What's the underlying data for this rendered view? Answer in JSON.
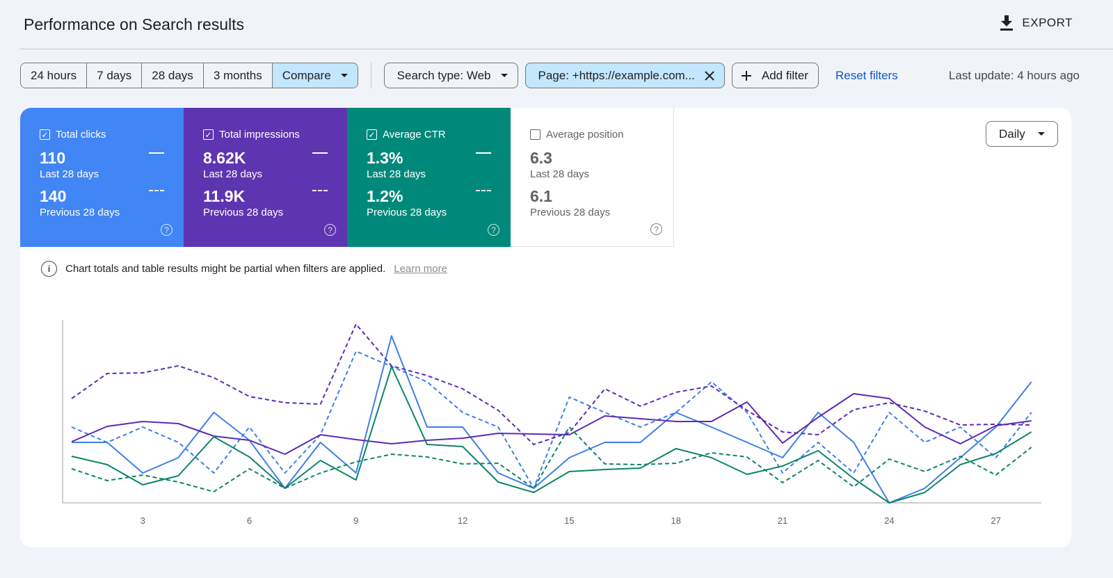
{
  "header": {
    "title": "Performance on Search results",
    "export_label": "EXPORT",
    "export_icon": "download-icon"
  },
  "toolbar": {
    "ranges": [
      "24 hours",
      "7 days",
      "28 days",
      "3 months"
    ],
    "compare_label": "Compare",
    "search_type": "Search type: Web",
    "page_filter": "Page: +https://example.com...",
    "add_filter": "Add filter",
    "reset_filters": "Reset filters",
    "last_update": "Last update: 4 hours ago"
  },
  "metrics": [
    {
      "label": "Total clicks",
      "checked": true,
      "current": "110",
      "current_label": "Last 28 days",
      "previous": "140",
      "previous_label": "Previous 28 days",
      "color": "#4285f4"
    },
    {
      "label": "Total impressions",
      "checked": true,
      "current": "8.62K",
      "current_label": "Last 28 days",
      "previous": "11.9K",
      "previous_label": "Previous 28 days",
      "color": "#5e35b1"
    },
    {
      "label": "Average CTR",
      "checked": true,
      "current": "1.3%",
      "current_label": "Last 28 days",
      "previous": "1.2%",
      "previous_label": "Previous 28 days",
      "color": "#00897b"
    },
    {
      "label": "Average position",
      "checked": false,
      "current": "6.3",
      "current_label": "Last 28 days",
      "previous": "6.1",
      "previous_label": "Previous 28 days",
      "color": "#ffffff"
    }
  ],
  "granularity": "Daily",
  "notice": {
    "text": "Chart totals and table results might be partial when filters are applied.",
    "link": "Learn more"
  },
  "chart_data": {
    "type": "line",
    "x": [
      1,
      2,
      3,
      4,
      5,
      6,
      7,
      8,
      9,
      10,
      11,
      12,
      13,
      14,
      15,
      16,
      17,
      18,
      19,
      20,
      21,
      22,
      23,
      24,
      25,
      26,
      27,
      28
    ],
    "xticks": [
      "3",
      "6",
      "9",
      "12",
      "15",
      "18",
      "21",
      "24",
      "27"
    ],
    "xtick_values": [
      3,
      6,
      9,
      12,
      15,
      18,
      21,
      24,
      27
    ],
    "ylim": [
      0,
      263
    ],
    "grid": false,
    "series": [
      {
        "metric": "clicks",
        "period": "current",
        "color": "#3f7ee8",
        "dashed": false,
        "values": [
          87,
          87,
          43,
          65,
          130,
          90,
          21,
          87,
          43,
          240,
          109,
          109,
          43,
          21,
          65,
          87,
          87,
          130,
          109,
          87,
          65,
          130,
          87,
          0,
          21,
          65,
          109,
          174
        ]
      },
      {
        "metric": "clicks",
        "period": "previous",
        "color": "#3f7ee8",
        "dashed": true,
        "values": [
          109,
          87,
          109,
          87,
          43,
          109,
          43,
          98,
          218,
          196,
          174,
          130,
          109,
          21,
          152,
          130,
          109,
          130,
          174,
          130,
          43,
          87,
          43,
          130,
          87,
          109,
          65,
          130
        ]
      },
      {
        "metric": "impressions",
        "period": "current",
        "color": "#5b2bb5",
        "dashed": false,
        "values": [
          88,
          110,
          117,
          114,
          96,
          90,
          70,
          98,
          91,
          85,
          90,
          93,
          100,
          99,
          98,
          125,
          121,
          117,
          117,
          145,
          86,
          123,
          157,
          150,
          109,
          85,
          111,
          118
        ]
      },
      {
        "metric": "impressions",
        "period": "previous",
        "color": "#5b2bb5",
        "dashed": true,
        "values": [
          150,
          186,
          187,
          197,
          180,
          153,
          144,
          142,
          257,
          197,
          183,
          164,
          133,
          84,
          101,
          164,
          139,
          159,
          168,
          133,
          102,
          98,
          134,
          144,
          132,
          112,
          113,
          112
        ]
      },
      {
        "metric": "ctr",
        "period": "current",
        "color": "#0b8468",
        "dashed": false,
        "values": [
          67,
          55,
          26,
          39,
          95,
          66,
          21,
          61,
          33,
          196,
          84,
          81,
          30,
          15,
          45,
          48,
          50,
          78,
          65,
          41,
          53,
          75,
          35,
          0,
          15,
          55,
          71,
          102
        ]
      },
      {
        "metric": "ctr",
        "period": "previous",
        "color": "#0b8468",
        "dashed": true,
        "values": [
          49,
          32,
          40,
          30,
          16,
          49,
          21,
          43,
          59,
          70,
          66,
          56,
          57,
          21,
          109,
          56,
          55,
          57,
          72,
          66,
          29,
          61,
          23,
          63,
          45,
          67,
          40,
          80
        ]
      }
    ]
  }
}
